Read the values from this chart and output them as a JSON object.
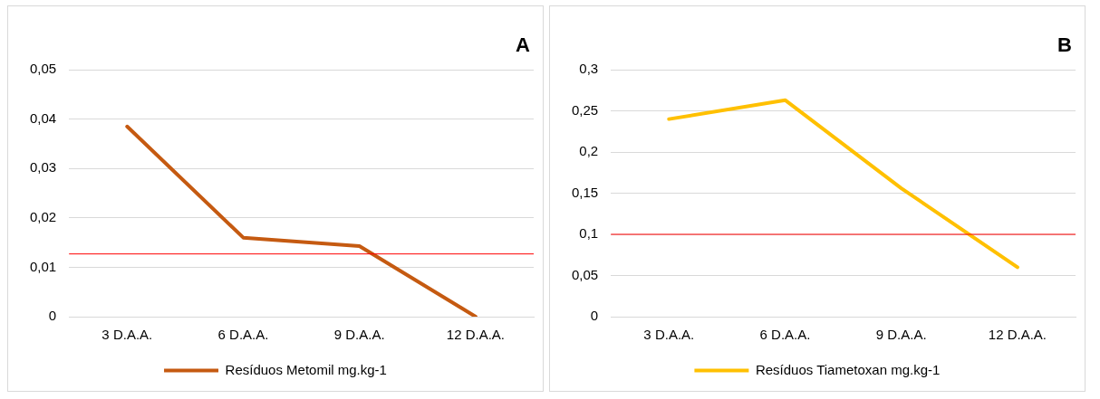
{
  "chart_data": [
    {
      "type": "line",
      "annotations": [
        "A"
      ],
      "categories": [
        "3 D.A.A.",
        "6 D.A.A.",
        "9 D.A.A.",
        "12 D.A.A."
      ],
      "series": [
        {
          "name": "Resíduos Metomil mg.kg-1",
          "color": "#c55a11",
          "values": [
            0.0385,
            0.016,
            0.0143,
            0
          ]
        }
      ],
      "ylim": [
        0,
        0.05
      ],
      "yticks": [
        {
          "value": 0,
          "label": "0"
        },
        {
          "value": 0.01,
          "label": "0,01"
        },
        {
          "value": 0.02,
          "label": "0,02"
        },
        {
          "value": 0.03,
          "label": "0,03"
        },
        {
          "value": 0.04,
          "label": "0,04"
        },
        {
          "value": 0.05,
          "label": "0,05"
        }
      ],
      "ref_lines": [
        {
          "axis": "y",
          "value": 0.0127,
          "color": "#ff0000"
        }
      ],
      "grid": "y",
      "legend": "bottom",
      "marker": "none",
      "line_style": "solid"
    },
    {
      "type": "line",
      "annotations": [
        "B"
      ],
      "categories": [
        "3 D.A.A.",
        "6 D.A.A.",
        "9 D.A.A.",
        "12 D.A.A."
      ],
      "series": [
        {
          "name": "Resíduos Tiametoxan mg.kg-1",
          "color": "#ffc000",
          "values": [
            0.24,
            0.263,
            0.156,
            0.06
          ]
        }
      ],
      "ylim": [
        0,
        0.3
      ],
      "yticks": [
        {
          "value": 0,
          "label": "0"
        },
        {
          "value": 0.05,
          "label": "0,05"
        },
        {
          "value": 0.1,
          "label": "0,1"
        },
        {
          "value": 0.15,
          "label": "0,15"
        },
        {
          "value": 0.2,
          "label": "0,2"
        },
        {
          "value": 0.25,
          "label": "0,25"
        },
        {
          "value": 0.3,
          "label": "0,3"
        }
      ],
      "ref_lines": [
        {
          "axis": "y",
          "value": 0.1,
          "color": "#ff0000"
        }
      ],
      "grid": "y",
      "legend": "bottom",
      "marker": "none",
      "line_style": "solid"
    }
  ]
}
